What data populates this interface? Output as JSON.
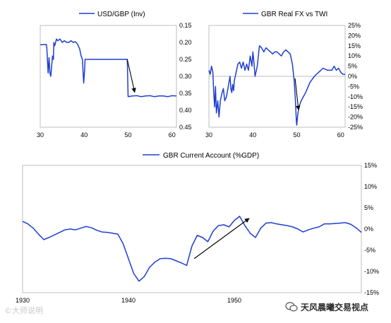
{
  "chart_data": [
    {
      "type": "line",
      "legend": "USD/GBP (Inv)",
      "legend_position": "top",
      "x_ticks": [
        "30",
        "40",
        "50",
        "60"
      ],
      "y_ticks": [
        "0.15",
        "0.20",
        "0.25",
        "0.30",
        "0.35",
        "0.40",
        "0.45"
      ],
      "xlim": [
        30,
        61
      ],
      "ylim": [
        0.15,
        0.45
      ],
      "y_inverted": true,
      "y_axis_side": "right",
      "grid": false,
      "color": "#1f3fd1",
      "series": [
        {
          "name": "USD/GBP (Inv)",
          "x": [
            30,
            31.4,
            31.5,
            31.8,
            32.0,
            32.2,
            32.4,
            32.6,
            32.8,
            33.0,
            33.1,
            33.3,
            33.5,
            33.7,
            34.0,
            34.5,
            35.0,
            35.5,
            36.0,
            36.5,
            37.0,
            37.5,
            38.0,
            38.5,
            39.0,
            39.3,
            39.6,
            39.8,
            39.9,
            40.0,
            40.1,
            40.2,
            40.4,
            45,
            49.8,
            49.9,
            50.0,
            51,
            52,
            53,
            54,
            55,
            56,
            57,
            58,
            59,
            60,
            61
          ],
          "y": [
            0.207,
            0.206,
            0.215,
            0.29,
            0.245,
            0.29,
            0.3,
            0.27,
            0.24,
            0.25,
            0.2,
            0.21,
            0.2,
            0.19,
            0.195,
            0.19,
            0.2,
            0.195,
            0.2,
            0.2,
            0.195,
            0.2,
            0.198,
            0.205,
            0.22,
            0.24,
            0.25,
            0.3,
            0.32,
            0.3,
            0.28,
            0.25,
            0.25,
            0.25,
            0.25,
            0.3,
            0.36,
            0.358,
            0.357,
            0.36,
            0.358,
            0.357,
            0.36,
            0.358,
            0.358,
            0.36,
            0.357,
            0.358
          ]
        }
      ],
      "arrow": {
        "from": [
          49.8,
          0.25
        ],
        "to": [
          51.5,
          0.347
        ]
      }
    },
    {
      "type": "line",
      "legend": "GBR Real FX vs TWI",
      "legend_position": "top",
      "x_ticks": [
        "30",
        "40",
        "50",
        "60"
      ],
      "y_ticks": [
        "25%",
        "20%",
        "15%",
        "10%",
        "5%",
        "0%",
        "-5%",
        "-10%",
        "-15%",
        "-20%",
        "-25%"
      ],
      "xlim": [
        30,
        61
      ],
      "ylim": [
        -25,
        25
      ],
      "y_axis_side": "right",
      "zero_line": true,
      "grid": false,
      "color": "#1f3fd1",
      "series": [
        {
          "name": "GBR Real FX vs TWI",
          "x": [
            30,
            30.3,
            30.6,
            30.9,
            31.1,
            31.3,
            31.5,
            31.7,
            32.0,
            32.3,
            32.6,
            33.0,
            33.3,
            33.6,
            34.0,
            34.4,
            34.8,
            35.0,
            35.2,
            35.4,
            35.6,
            35.8,
            36.2,
            36.6,
            37.0,
            37.4,
            37.8,
            38.2,
            38.6,
            39.0,
            39.4,
            39.8,
            40.0,
            40.2,
            40.5,
            41.0,
            41.5,
            42.0,
            42.5,
            43.0,
            43.5,
            44.0,
            44.5,
            45.0,
            45.5,
            46.0,
            46.5,
            47.0,
            47.5,
            48.0,
            48.5,
            49.0,
            49.4,
            49.7,
            49.9,
            50.0,
            50.2,
            50.5,
            51,
            52,
            53,
            54,
            55,
            56,
            57,
            58,
            58.5,
            59,
            59.5,
            60,
            60.5,
            61
          ],
          "y": [
            3,
            1,
            5,
            2,
            -8,
            -15,
            -5,
            -18,
            -12,
            -20,
            -12,
            -8,
            -6,
            -12,
            -10,
            -5,
            0,
            -6,
            -8,
            -4,
            -7,
            -2,
            2,
            6,
            7,
            4,
            7,
            3,
            6,
            3,
            10,
            5,
            12,
            8,
            0,
            5,
            15,
            14,
            12,
            14,
            13,
            12,
            11,
            12,
            12,
            11,
            10,
            12,
            13,
            12,
            11,
            6,
            -2,
            -12,
            -22,
            -24,
            -19,
            -15,
            -12,
            -8,
            -3,
            0,
            2,
            4,
            3,
            3,
            5,
            3,
            4,
            2,
            1,
            1
          ]
        }
      ],
      "arrow": {
        "from": [
          49.6,
          -1
        ],
        "to": [
          50.4,
          -16.5
        ]
      }
    },
    {
      "type": "line",
      "legend": "GBR Current Account (%GDP)",
      "legend_position": "top",
      "x_ticks": [
        "1930",
        "1940",
        "1950"
      ],
      "y_ticks": [
        "15%",
        "10%",
        "5%",
        "0%",
        "-5%",
        "-10%",
        "-15%"
      ],
      "xlim": [
        1930,
        1962
      ],
      "ylim": [
        -15,
        15
      ],
      "y_axis_side": "right",
      "grid": false,
      "color": "#1f3fd1",
      "series": [
        {
          "name": "GBR Current Account (%GDP)",
          "x": [
            1930,
            1930.5,
            1931,
            1931.5,
            1932,
            1932.5,
            1933,
            1933.5,
            1934,
            1934.5,
            1935,
            1935.5,
            1936,
            1936.5,
            1937,
            1937.5,
            1938,
            1938.5,
            1939,
            1939.5,
            1940,
            1940.5,
            1941,
            1941.5,
            1942,
            1942.5,
            1943,
            1943.5,
            1944,
            1944.5,
            1945,
            1945.5,
            1946,
            1946.5,
            1947,
            1947.5,
            1948,
            1948.5,
            1949,
            1949.5,
            1950,
            1950.5,
            1951,
            1951.5,
            1952,
            1952.5,
            1953,
            1953.5,
            1954,
            1954.5,
            1955,
            1955.5,
            1956,
            1956.5,
            1957,
            1957.5,
            1958,
            1958.5,
            1959,
            1959.5,
            1960,
            1960.5,
            1961,
            1961.5,
            1962
          ],
          "y": [
            1.8,
            1.2,
            0.2,
            -1.2,
            -2.5,
            -2.0,
            -1.4,
            -0.8,
            -0.2,
            0.0,
            -0.2,
            0.2,
            0.6,
            0.3,
            -0.3,
            -0.7,
            -0.8,
            -1.0,
            -1.2,
            -3.5,
            -7.0,
            -10.5,
            -12.3,
            -11.2,
            -9.0,
            -7.8,
            -7.0,
            -6.9,
            -7.0,
            -7.5,
            -8.0,
            -8.6,
            -4.0,
            -1.5,
            -2.0,
            -3.0,
            -0.5,
            0.8,
            1.0,
            0.5,
            2.0,
            3.0,
            0.8,
            -1.0,
            -2.0,
            0.2,
            1.4,
            1.5,
            1.2,
            1.0,
            0.8,
            0.5,
            0.0,
            -0.7,
            -0.2,
            0.2,
            0.5,
            1.2,
            1.2,
            1.3,
            1.4,
            1.5,
            1.1,
            0.3,
            -0.8
          ]
        }
      ],
      "arrow": {
        "from": [
          1946.2,
          -7.0
        ],
        "to": [
          1951.4,
          2.5
        ]
      }
    }
  ],
  "watermark_left": "©大师说明",
  "watermark_right": "天风晨曦交易视点",
  "colors": {
    "line": "#1f3fd1",
    "axis": "#bfbfbf",
    "text": "#000000",
    "arrow": "#000000"
  }
}
